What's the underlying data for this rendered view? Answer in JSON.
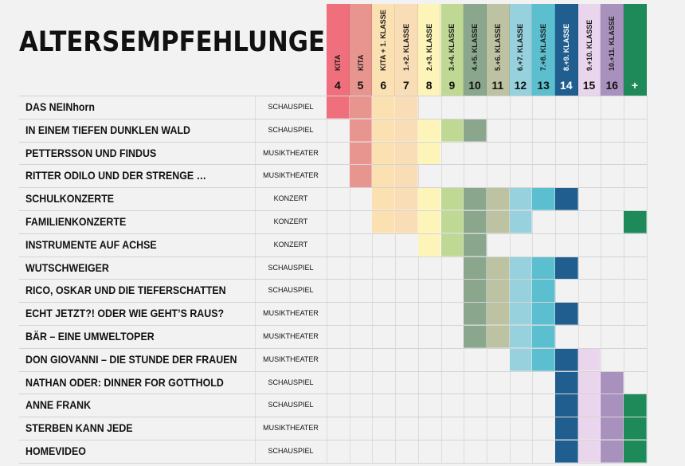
{
  "title": "ALTERSEMPFEHLUNGEN",
  "columns": [
    {
      "label": "KITA",
      "num": "4",
      "color": "#ef6f7c"
    },
    {
      "label": "KITA",
      "num": "5",
      "color": "#e8958f"
    },
    {
      "label": "KITA + 1. KLASSE",
      "num": "6",
      "color": "#fbe0b2"
    },
    {
      "label": "1.+2. KLASSE",
      "num": "7",
      "color": "#f8ddb6"
    },
    {
      "label": "2.+3. KLASSE",
      "num": "8",
      "color": "#fdf4b9"
    },
    {
      "label": "3.+4. KLASSE",
      "num": "9",
      "color": "#bfd894"
    },
    {
      "label": "4.+5. KLASSE",
      "num": "10",
      "color": "#8aa68d"
    },
    {
      "label": "5.+6. KLASSE",
      "num": "11",
      "color": "#bcc2a2"
    },
    {
      "label": "6.+7. KLASSE",
      "num": "12",
      "color": "#97d1de"
    },
    {
      "label": "7.+8. KLASSE",
      "num": "13",
      "color": "#5bbfd0"
    },
    {
      "label": "8.+9. KLASSE",
      "num": "14",
      "color": "#1f5e8e"
    },
    {
      "label": "9.+10. KLASSE",
      "num": "15",
      "color": "#ead6ec"
    },
    {
      "label": "10.+11. KLASSE",
      "num": "16",
      "color": "#a991bd"
    },
    {
      "label": "",
      "num": "+",
      "color": "#1e8a5a"
    }
  ],
  "rows": [
    {
      "title": "DAS NEINhorn",
      "type": "SCHAUSPIEL",
      "cols": [
        0,
        1,
        2,
        3
      ]
    },
    {
      "title": "IN EINEM TIEFEN DUNKLEN WALD",
      "type": "SCHAUSPIEL",
      "cols": [
        1,
        2,
        3,
        4,
        5,
        6
      ]
    },
    {
      "title": "PETTERSSON UND FINDUS",
      "type": "MUSIKTHEATER",
      "cols": [
        1,
        2,
        3,
        4
      ]
    },
    {
      "title": "RITTER ODILO UND DER STRENGE …",
      "type": "MUSIKTHEATER",
      "cols": [
        1,
        2,
        3
      ]
    },
    {
      "title": "SCHULKONZERTE",
      "type": "KONZERT",
      "cols": [
        2,
        3,
        4,
        5,
        6,
        7,
        8,
        9,
        10
      ]
    },
    {
      "title": "FAMILIENKONZERTE",
      "type": "KONZERT",
      "cols": [
        2,
        3,
        4,
        5,
        6,
        7,
        8,
        13
      ]
    },
    {
      "title": "INSTRUMENTE AUF ACHSE",
      "type": "KONZERT",
      "cols": [
        4,
        5,
        6
      ]
    },
    {
      "title": "WUTSCHWEIGER",
      "type": "SCHAUSPIEL",
      "cols": [
        6,
        7,
        8,
        9,
        10
      ]
    },
    {
      "title": "RICO, OSKAR UND DIE TIEFERSCHATTEN",
      "type": "SCHAUSPIEL",
      "cols": [
        6,
        7,
        8,
        9
      ]
    },
    {
      "title": "ECHT JETZT?! ODER WIE GEHT’S RAUS?",
      "type": "MUSIKTHEATER",
      "cols": [
        6,
        7,
        8,
        9,
        10
      ]
    },
    {
      "title": "BÄR – EINE UMWELTOPER",
      "type": "MUSIKTHEATER",
      "cols": [
        6,
        7,
        8,
        9
      ]
    },
    {
      "title": "DON GIOVANNI – DIE STUNDE DER FRAUEN",
      "type": "MUSIKTHEATER",
      "cols": [
        8,
        9,
        10,
        11
      ]
    },
    {
      "title": "NATHAN ODER: DINNER FOR GOTTHOLD",
      "type": "SCHAUSPIEL",
      "cols": [
        10,
        11,
        12
      ]
    },
    {
      "title": "ANNE FRANK",
      "type": "SCHAUSPIEL",
      "cols": [
        10,
        11,
        12,
        13
      ]
    },
    {
      "title": "STERBEN KANN JEDE",
      "type": "MUSIKTHEATER",
      "cols": [
        10,
        11,
        12,
        13
      ]
    },
    {
      "title": "HOMEVIDEO",
      "type": "SCHAUSPIEL",
      "cols": [
        10,
        11,
        12,
        13
      ]
    }
  ]
}
